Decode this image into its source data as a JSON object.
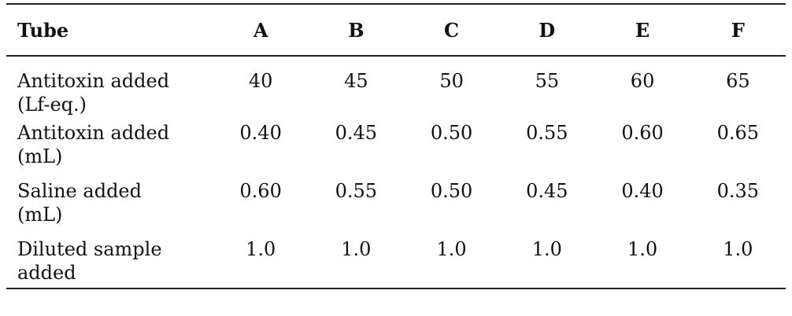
{
  "table": {
    "header": [
      "Tube",
      "A",
      "B",
      "C",
      "D",
      "E",
      "F"
    ],
    "rows": [
      {
        "label_line1": "Antitoxin added",
        "label_line2": "(Lf-eq.)",
        "values": [
          "40",
          "45",
          "50",
          "55",
          "60",
          "65"
        ]
      },
      {
        "label_line1": "Antitoxin added",
        "label_line2": "(mL)",
        "values": [
          "0.40",
          "0.45",
          "0.50",
          "0.55",
          "0.60",
          "0.65"
        ]
      },
      {
        "label_line1": "Saline added",
        "label_line2": "(mL)",
        "values": [
          "0.60",
          "0.55",
          "0.50",
          "0.45",
          "0.40",
          "0.35"
        ]
      },
      {
        "label_line1": "Diluted sample",
        "label_line2": "added",
        "values": [
          "1.0",
          "1.0",
          "1.0",
          "1.0",
          "1.0",
          "1.0"
        ]
      }
    ]
  }
}
